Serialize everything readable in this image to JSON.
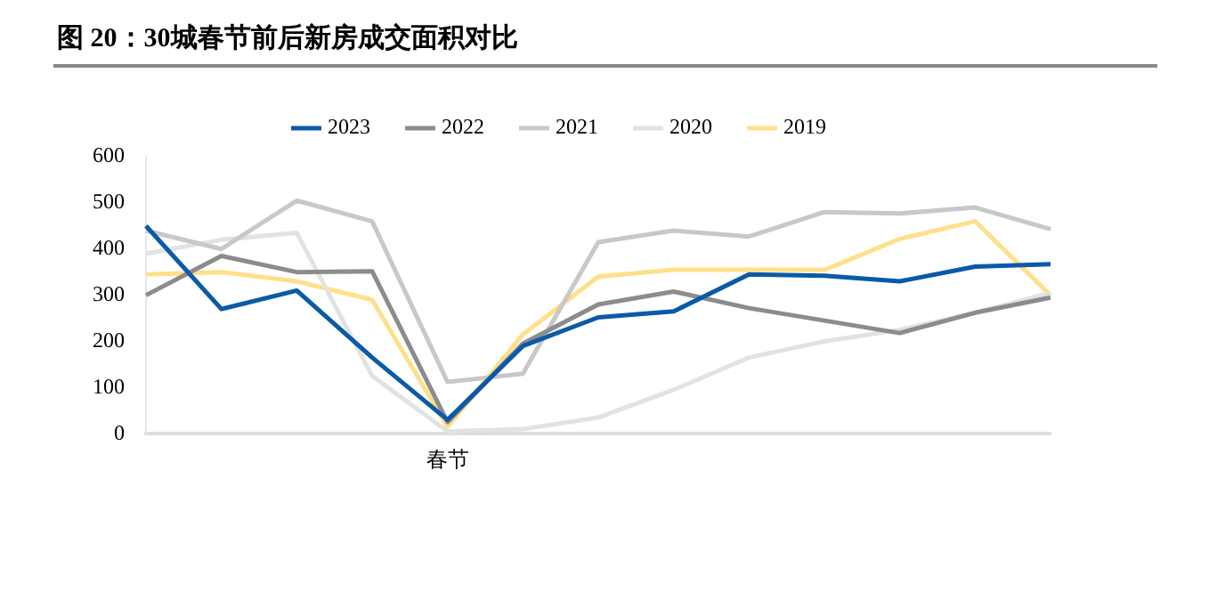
{
  "chart_data": {
    "type": "line",
    "title": "图 20：30城春节前后新房成交面积对比",
    "categories": [
      null,
      null,
      null,
      null,
      "春节",
      null,
      null,
      null,
      null,
      null,
      null,
      null,
      null
    ],
    "ylim": [
      0,
      600
    ],
    "yticks": [
      0,
      100,
      200,
      300,
      400,
      500,
      600
    ],
    "grid": false,
    "legend": "top",
    "marker": "none",
    "series": [
      {
        "name": "2023",
        "color": "#0b5aa8",
        "values": [
          450,
          270,
          310,
          165,
          30,
          190,
          252,
          265,
          345,
          342,
          330,
          362,
          367
        ]
      },
      {
        "name": "2022",
        "color": "#8c8c8c",
        "values": [
          300,
          385,
          350,
          352,
          25,
          195,
          280,
          308,
          272,
          245,
          218,
          262,
          295
        ]
      },
      {
        "name": "2021",
        "color": "#c8c8c8",
        "values": [
          440,
          400,
          505,
          460,
          112,
          130,
          415,
          440,
          427,
          480,
          477,
          490,
          443
        ]
      },
      {
        "name": "2020",
        "color": "#e2e2e2",
        "values": [
          390,
          420,
          435,
          125,
          5,
          10,
          35,
          95,
          165,
          200,
          225,
          262,
          305
        ]
      },
      {
        "name": "2019",
        "color": "#ffe08a",
        "values": [
          345,
          350,
          330,
          290,
          15,
          215,
          340,
          355,
          355,
          355,
          422,
          460,
          300
        ]
      }
    ]
  }
}
